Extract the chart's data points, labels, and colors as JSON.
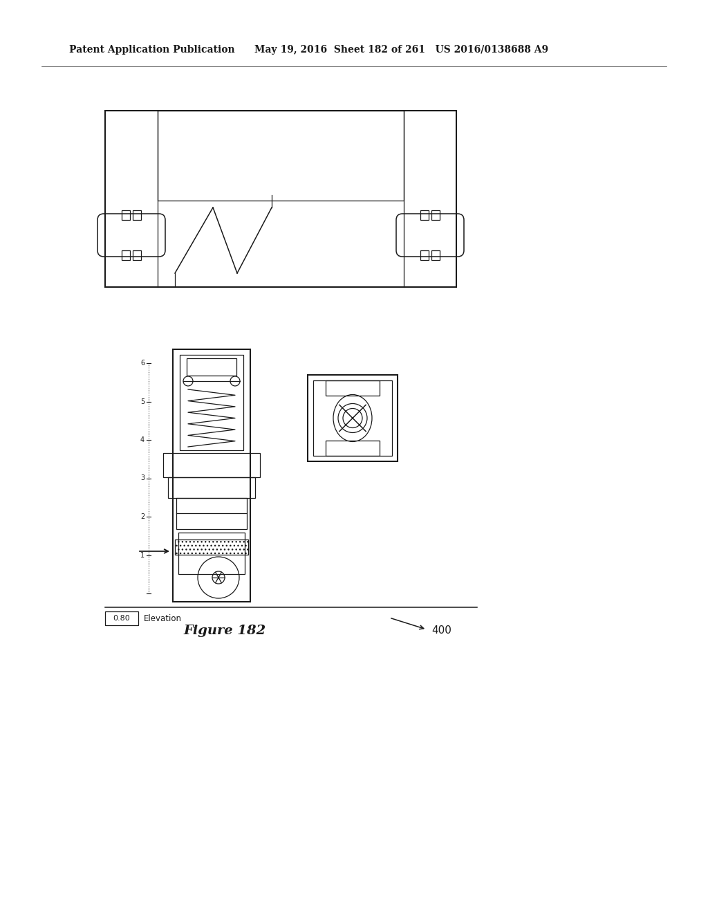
{
  "bg_color": "#ffffff",
  "header_left": "Patent Application Publication",
  "header_right": "May 19, 2016  Sheet 182 of 261   US 2016/0138688 A9",
  "figure_label": "Figure 182",
  "ref_label": "400",
  "elevation_label": "0.80",
  "elevation_text": "Elevation",
  "scale_numbers": [
    "1",
    "2",
    "3",
    "4",
    "5",
    "6"
  ],
  "line_color": "#1a1a1a",
  "lw_main": 1.5,
  "lw_thin": 0.9,
  "lw_med": 1.1
}
